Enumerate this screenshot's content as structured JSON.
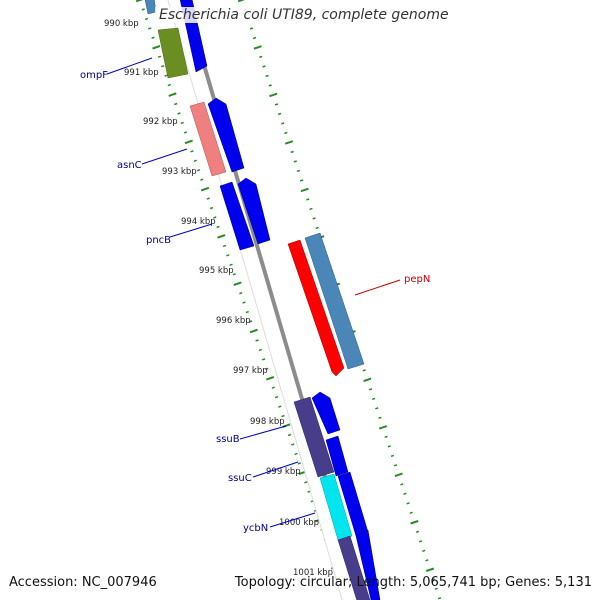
{
  "title": "Escherichia coli UTI89, complete genome",
  "footer": {
    "accession": "Accession: NC_007946",
    "stats": "Topology: circular; Length: 5,065,741 bp; Genes: 5,131"
  },
  "colors": {
    "backbone": "#8c8c8c",
    "tick": "#2a8a2a",
    "gene_blue": "#0000ee",
    "gene_red": "#ff0000",
    "gene_steel": "#4a86b8",
    "gene_olive": "#6b8e23",
    "gene_salmon": "#f08080",
    "gene_slate": "#483d8b",
    "gene_cyan": "#00e5ee",
    "label_blue": "#00008b",
    "label_red": "#cc0000"
  },
  "tick_labels": [
    "990 kbp",
    "991 kbp",
    "992 kbp",
    "993 kbp",
    "994 kbp",
    "995 kbp",
    "996 kbp",
    "997 kbp",
    "998 kbp",
    "999 kbp",
    "1000 kbp",
    "1001 kbp"
  ],
  "gene_labels": [
    "ompF",
    "asnC",
    "pncB",
    "pepN",
    "ssuB",
    "ssuC",
    "ycbN"
  ]
}
